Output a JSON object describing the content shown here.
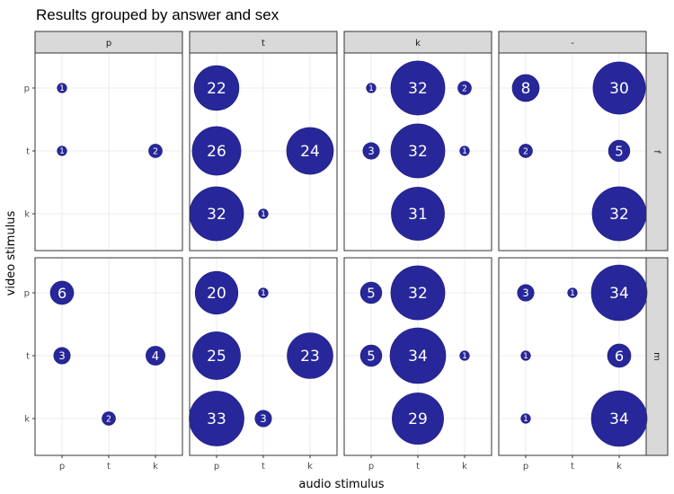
{
  "chart_data": {
    "type": "scatter",
    "title": "Results grouped by answer and sex",
    "xlabel": "audio stimulus",
    "ylabel": "video stimulus",
    "x_categories": [
      "p",
      "t",
      "k"
    ],
    "y_categories": [
      "p",
      "t",
      "k"
    ],
    "facet_columns": [
      "p",
      "t",
      "k",
      "-"
    ],
    "facet_rows": [
      "f",
      "m"
    ],
    "point_color": "#27279a",
    "point_stroke": "#1a1a80",
    "label_color": "#ffffff",
    "strip_fill": "#d9d9d9",
    "grid": true,
    "grid_color": "#ebebeb",
    "max_count": 34,
    "points": [
      {
        "row": "f",
        "col": "p",
        "x": "p",
        "y": "p",
        "n": 1
      },
      {
        "row": "f",
        "col": "p",
        "x": "p",
        "y": "t",
        "n": 1
      },
      {
        "row": "f",
        "col": "p",
        "x": "k",
        "y": "t",
        "n": 2
      },
      {
        "row": "f",
        "col": "t",
        "x": "p",
        "y": "p",
        "n": 22
      },
      {
        "row": "f",
        "col": "t",
        "x": "p",
        "y": "t",
        "n": 26
      },
      {
        "row": "f",
        "col": "t",
        "x": "k",
        "y": "t",
        "n": 24
      },
      {
        "row": "f",
        "col": "t",
        "x": "p",
        "y": "k",
        "n": 32
      },
      {
        "row": "f",
        "col": "t",
        "x": "t",
        "y": "k",
        "n": 1
      },
      {
        "row": "f",
        "col": "k",
        "x": "p",
        "y": "p",
        "n": 1
      },
      {
        "row": "f",
        "col": "k",
        "x": "t",
        "y": "p",
        "n": 32
      },
      {
        "row": "f",
        "col": "k",
        "x": "k",
        "y": "p",
        "n": 2
      },
      {
        "row": "f",
        "col": "k",
        "x": "p",
        "y": "t",
        "n": 3
      },
      {
        "row": "f",
        "col": "k",
        "x": "t",
        "y": "t",
        "n": 32
      },
      {
        "row": "f",
        "col": "k",
        "x": "k",
        "y": "t",
        "n": 1
      },
      {
        "row": "f",
        "col": "k",
        "x": "t",
        "y": "k",
        "n": 31
      },
      {
        "row": "f",
        "col": "-",
        "x": "p",
        "y": "p",
        "n": 8
      },
      {
        "row": "f",
        "col": "-",
        "x": "k",
        "y": "p",
        "n": 30
      },
      {
        "row": "f",
        "col": "-",
        "x": "p",
        "y": "t",
        "n": 2
      },
      {
        "row": "f",
        "col": "-",
        "x": "k",
        "y": "t",
        "n": 5
      },
      {
        "row": "f",
        "col": "-",
        "x": "k",
        "y": "k",
        "n": 32
      },
      {
        "row": "m",
        "col": "p",
        "x": "p",
        "y": "p",
        "n": 6
      },
      {
        "row": "m",
        "col": "p",
        "x": "p",
        "y": "t",
        "n": 3
      },
      {
        "row": "m",
        "col": "p",
        "x": "k",
        "y": "t",
        "n": 4
      },
      {
        "row": "m",
        "col": "p",
        "x": "t",
        "y": "k",
        "n": 2
      },
      {
        "row": "m",
        "col": "t",
        "x": "p",
        "y": "p",
        "n": 20
      },
      {
        "row": "m",
        "col": "t",
        "x": "t",
        "y": "p",
        "n": 1
      },
      {
        "row": "m",
        "col": "t",
        "x": "p",
        "y": "t",
        "n": 25
      },
      {
        "row": "m",
        "col": "t",
        "x": "k",
        "y": "t",
        "n": 23
      },
      {
        "row": "m",
        "col": "t",
        "x": "p",
        "y": "k",
        "n": 33
      },
      {
        "row": "m",
        "col": "t",
        "x": "t",
        "y": "k",
        "n": 3
      },
      {
        "row": "m",
        "col": "k",
        "x": "p",
        "y": "p",
        "n": 5
      },
      {
        "row": "m",
        "col": "k",
        "x": "t",
        "y": "p",
        "n": 32
      },
      {
        "row": "m",
        "col": "k",
        "x": "p",
        "y": "t",
        "n": 5
      },
      {
        "row": "m",
        "col": "k",
        "x": "t",
        "y": "t",
        "n": 34
      },
      {
        "row": "m",
        "col": "k",
        "x": "k",
        "y": "t",
        "n": 1
      },
      {
        "row": "m",
        "col": "k",
        "x": "t",
        "y": "k",
        "n": 29
      },
      {
        "row": "m",
        "col": "-",
        "x": "p",
        "y": "p",
        "n": 3
      },
      {
        "row": "m",
        "col": "-",
        "x": "t",
        "y": "p",
        "n": 1
      },
      {
        "row": "m",
        "col": "-",
        "x": "k",
        "y": "p",
        "n": 34
      },
      {
        "row": "m",
        "col": "-",
        "x": "p",
        "y": "t",
        "n": 1
      },
      {
        "row": "m",
        "col": "-",
        "x": "k",
        "y": "t",
        "n": 6
      },
      {
        "row": "m",
        "col": "-",
        "x": "p",
        "y": "k",
        "n": 1
      },
      {
        "row": "m",
        "col": "-",
        "x": "k",
        "y": "k",
        "n": 34
      }
    ]
  }
}
